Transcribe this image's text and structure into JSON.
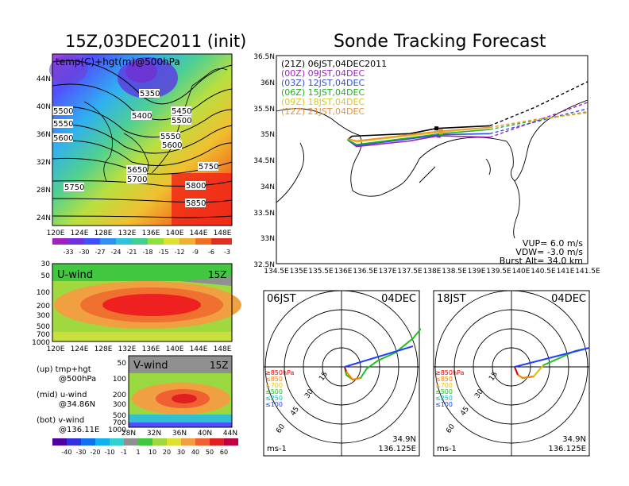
{
  "left_title": "15Z,03DEC2011 (init)",
  "right_title": "Sonde Tracking Forecast",
  "map500": {
    "label": "temp(C)+hgt(m)@500hPa",
    "lat_ticks": [
      "44N",
      "40N",
      "36N",
      "32N",
      "28N",
      "24N"
    ],
    "lon_ticks": [
      "120E",
      "124E",
      "128E",
      "132E",
      "136E",
      "140E",
      "144E",
      "148E"
    ],
    "contour_labels": [
      "5350",
      "5400",
      "5450",
      "5500",
      "5500",
      "5550",
      "5550",
      "5600",
      "5600",
      "5650",
      "5700",
      "5750",
      "5750",
      "5800",
      "5850"
    ]
  },
  "temp_colorbar": [
    "-33",
    "-30",
    "-27",
    "-24",
    "-21",
    "-18",
    "-15",
    "-12",
    "-9",
    "-6",
    "-3"
  ],
  "uwind": {
    "label": "U-wind",
    "time": "15Z",
    "p_ticks": [
      "30",
      "50",
      "100",
      "200",
      "300",
      "500",
      "700",
      "1000"
    ],
    "lon_ticks": [
      "120E",
      "124E",
      "128E",
      "132E",
      "136E",
      "140E",
      "144E",
      "148E"
    ]
  },
  "vwind": {
    "label": "V-wind",
    "time": "15Z",
    "p_ticks": [
      "50",
      "100",
      "200",
      "300",
      "500",
      "700",
      "1000"
    ],
    "lat_ticks": [
      "28N",
      "32N",
      "36N",
      "40N",
      "44N"
    ]
  },
  "wind_colorbar": [
    "-40",
    "-30",
    "-20",
    "-10",
    "-1",
    "1",
    "10",
    "20",
    "30",
    "40",
    "50",
    "60"
  ],
  "legend_notes": [
    "(up) tmp+hgt",
    "@500hPa",
    "(mid) u-wind",
    "@34.86N",
    "(bot) v-wind",
    "@136.11E"
  ],
  "track": {
    "lat_ticks": [
      "36.5N",
      "36N",
      "35.5N",
      "35N",
      "34.5N",
      "34N",
      "33.5N",
      "33N",
      "32.5N"
    ],
    "lon_ticks": [
      "134.5E",
      "135E",
      "135.5E",
      "136E",
      "136.5E",
      "137E",
      "137.5E",
      "138E",
      "138.5E",
      "139E",
      "139.5E",
      "140E",
      "140.5E",
      "141E",
      "141.5E"
    ],
    "runs": [
      {
        "label": "(21Z)  06JST,04DEC2011",
        "color": "#000000"
      },
      {
        "label": "(00Z)  09JST,04DEC",
        "color": "#a020c0"
      },
      {
        "label": "(03Z)  12JST,04DEC",
        "color": "#3050e0"
      },
      {
        "label": "(06Z)  15JST,04DEC",
        "color": "#20b020"
      },
      {
        "label": "(09Z)  18JST,04DEC",
        "color": "#d8c820"
      },
      {
        "label": "(12Z)  21JST,04DEC",
        "color": "#f09030"
      }
    ],
    "vup": "VUP=  6.0  m/s",
    "vdw": "VDW= -3.0  m/s",
    "burst": "Burst Alt= 34.0  km"
  },
  "hodo1": {
    "time": "06JST",
    "date": "04DEC",
    "lat": "34.9N",
    "lon": "136.125E",
    "unit": "ms-1"
  },
  "hodo2": {
    "time": "18JST",
    "date": "04DEC",
    "lat": "34.9N",
    "lon": "136.125E",
    "unit": "ms-1"
  },
  "hodo_ring_labels": [
    "15",
    "30",
    "45",
    "60"
  ],
  "hodo_levels": [
    {
      "label": "≥850hPa",
      "color": "#e00000"
    },
    {
      "label": "≤850",
      "color": "#ff8000"
    },
    {
      "label": "≤700",
      "color": "#f0c000"
    },
    {
      "label": "≤500",
      "color": "#20c020"
    },
    {
      "label": "≤250",
      "color": "#00c0c0"
    },
    {
      "label": "≤100",
      "color": "#2040ff"
    }
  ],
  "chart_data": [
    {
      "type": "heatmap",
      "title": "temp(C)+hgt(m)@500hPa",
      "xlim": [
        "120E",
        "150E"
      ],
      "ylim": [
        "22N",
        "47N"
      ],
      "contour_levels": [
        5350,
        5400,
        5450,
        5500,
        5550,
        5600,
        5650,
        5700,
        5750,
        5800,
        5850
      ],
      "colorbar": [
        -33,
        -30,
        -27,
        -24,
        -21,
        -18,
        -15,
        -12,
        -9,
        -6,
        -3
      ]
    },
    {
      "type": "line",
      "title": "Sonde Tracking Forecast",
      "xlim": [
        134.5,
        141.5
      ],
      "ylim": [
        32.5,
        36.5
      ],
      "series": [
        {
          "name": "(21Z) 06JST,04DEC2011",
          "x": [
            136.1,
            136.2,
            137.5,
            138.1,
            139.3,
            140.3,
            141.5
          ],
          "y": [
            34.88,
            34.95,
            35.0,
            35.1,
            35.15,
            35.5,
            36.0
          ]
        },
        {
          "name": "(00Z) 09JST,04DEC",
          "x": [
            136.1,
            136.3,
            137.5,
            138.15,
            139.3,
            140.3,
            141.5
          ],
          "y": [
            34.88,
            34.75,
            34.86,
            34.96,
            34.93,
            35.23,
            35.6
          ]
        },
        {
          "name": "(03Z) 12JST,04DEC",
          "x": [
            136.1,
            136.3,
            137.5,
            138.2,
            139.3,
            140.3,
            141.5
          ],
          "y": [
            34.88,
            34.77,
            34.9,
            34.98,
            35.0,
            35.22,
            35.48
          ]
        },
        {
          "name": "(06Z) 15JST,04DEC",
          "x": [
            136.1,
            136.3,
            137.5,
            138.2,
            139.3,
            140.3,
            141.5
          ],
          "y": [
            34.88,
            34.79,
            34.92,
            35.0,
            35.08,
            35.25,
            35.42
          ]
        },
        {
          "name": "(09Z) 18JST,04DEC",
          "x": [
            136.1,
            136.3,
            137.5,
            138.2,
            139.3,
            140.3,
            141.5
          ],
          "y": [
            34.9,
            34.84,
            34.96,
            35.03,
            35.12,
            35.26,
            35.4
          ]
        },
        {
          "name": "(12Z) 21JST,04DEC",
          "x": [
            136.1,
            136.3,
            137.5,
            138.2,
            139.3,
            140.3,
            141.5
          ],
          "y": [
            34.9,
            34.86,
            34.98,
            35.05,
            35.12,
            35.27,
            35.41
          ]
        }
      ]
    }
  ]
}
